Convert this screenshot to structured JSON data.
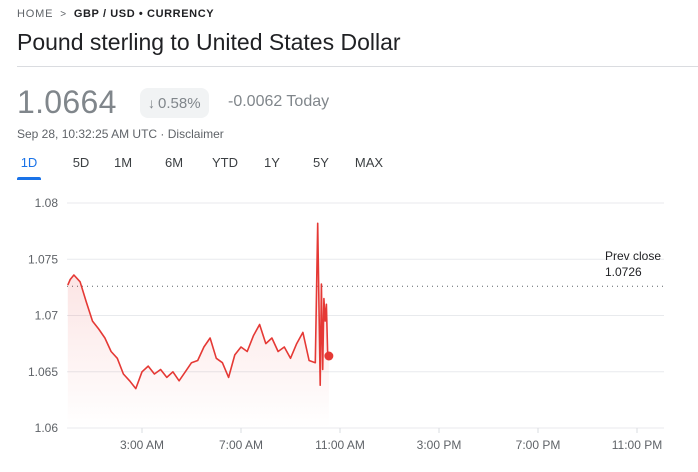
{
  "breadcrumb": {
    "home": "HOME",
    "separator": ">",
    "current": "GBP / USD • CURRENCY"
  },
  "title": "Pound sterling to United States Dollar",
  "price": "1.0664",
  "change": {
    "percent": "0.58%",
    "direction": "down",
    "arrow_icon": "arrow-down-icon",
    "absolute": "-0.0062 Today"
  },
  "timestamp": {
    "time": "Sep 28, 10:32:25 AM UTC",
    "separator": " · ",
    "disclaimer": "Disclaimer"
  },
  "tabs": [
    {
      "label": "1D",
      "active": true
    },
    {
      "label": "5D",
      "active": false
    },
    {
      "label": "1M",
      "active": false
    },
    {
      "label": "6M",
      "active": false
    },
    {
      "label": "YTD",
      "active": false
    },
    {
      "label": "1Y",
      "active": false
    },
    {
      "label": "5Y",
      "active": false
    },
    {
      "label": "MAX",
      "active": false
    }
  ],
  "colors": {
    "line": "#e53935",
    "accent": "#1a73e8",
    "muted": "#80868b"
  },
  "prev_close": {
    "label": "Prev close",
    "value": "1.0726"
  },
  "chart_data": {
    "type": "line",
    "title": "",
    "xlabel": "",
    "ylabel": "",
    "ylim": [
      1.06,
      1.08
    ],
    "y_ticks": [
      "1.08",
      "1.075",
      "1.07",
      "1.065",
      "1.06"
    ],
    "x_ticks": [
      "3:00 AM",
      "7:00 AM",
      "11:00 AM",
      "3:00 PM",
      "7:00 PM",
      "11:00 PM"
    ],
    "xlim_hours": [
      0,
      24
    ],
    "grid": true,
    "reference_line": 1.0726,
    "series": [
      {
        "x_hours": [
          0,
          0.1,
          0.25,
          0.5,
          0.75,
          1.0,
          1.25,
          1.5,
          1.75,
          2.0,
          2.25,
          2.5,
          2.75,
          3.0,
          3.25,
          3.5,
          3.75,
          4.0,
          4.25,
          4.5,
          4.75,
          5.0,
          5.25,
          5.5,
          5.75,
          6.0,
          6.25,
          6.5,
          6.75,
          7.0,
          7.25,
          7.5,
          7.75,
          8.0,
          8.25,
          8.5,
          8.75,
          9.0,
          9.25,
          9.5,
          9.75,
          10.0,
          10.1,
          10.2,
          10.25,
          10.3,
          10.35,
          10.4,
          10.45,
          10.5,
          10.55
        ],
        "y": [
          1.0727,
          1.0732,
          1.0736,
          1.073,
          1.0712,
          1.0695,
          1.0688,
          1.068,
          1.0668,
          1.0662,
          1.0648,
          1.0642,
          1.0635,
          1.065,
          1.0655,
          1.0648,
          1.0652,
          1.0645,
          1.065,
          1.0642,
          1.065,
          1.0658,
          1.066,
          1.0672,
          1.068,
          1.0662,
          1.0658,
          1.0645,
          1.0665,
          1.0672,
          1.0668,
          1.0682,
          1.0692,
          1.0675,
          1.068,
          1.0668,
          1.0672,
          1.0662,
          1.0675,
          1.0685,
          1.066,
          1.0658,
          1.0782,
          1.0638,
          1.0728,
          1.0652,
          1.0715,
          1.0695,
          1.071,
          1.0668,
          1.0664
        ]
      }
    ]
  }
}
